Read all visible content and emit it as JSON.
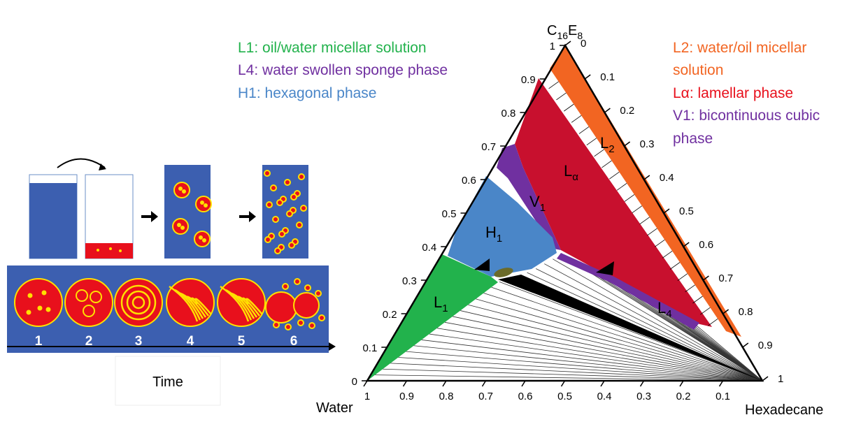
{
  "legend": {
    "left": [
      "L1: oil/water micellar solution",
      "L4: water swollen sponge phase",
      "H1: hexagonal phase"
    ],
    "right": [
      "L2: water/oil micellar",
      "solution",
      "Lα: lamellar phase",
      "V1: bicontinuous cubic",
      "phase"
    ]
  },
  "ternary": {
    "top_label": [
      "C",
      "16",
      "E",
      "8"
    ],
    "left_label": "Water",
    "right_label": "Hexadecane",
    "left_ticks": [
      0,
      0.1,
      0.2,
      0.3,
      0.4,
      0.5,
      0.6,
      0.7,
      0.8,
      0.9,
      1
    ],
    "right_ticks": [
      0,
      0.1,
      0.2,
      0.3,
      0.4,
      0.5,
      0.6,
      0.7,
      0.8,
      0.9,
      1
    ],
    "bottom_ticks": [
      1,
      0.9,
      0.8,
      0.7,
      0.6,
      0.5,
      0.4,
      0.3,
      0.2,
      0.1
    ],
    "regions": [
      [
        "L",
        "2"
      ],
      [
        "L",
        "α"
      ],
      [
        "V",
        "1"
      ],
      [
        "H",
        "1"
      ],
      [
        "L",
        "1"
      ],
      [
        "L",
        "4"
      ]
    ]
  },
  "schematic": {
    "stages": [
      "1",
      "2",
      "3",
      "4",
      "5",
      "6"
    ],
    "axis_label": "Time"
  }
}
